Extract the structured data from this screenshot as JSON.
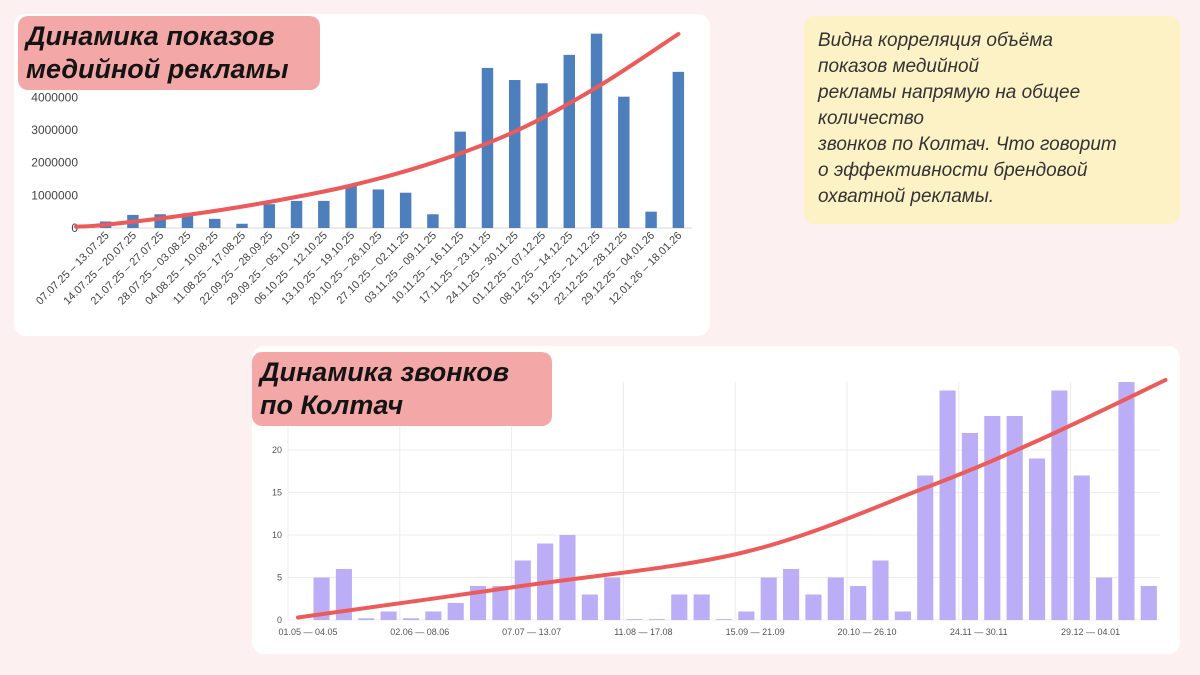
{
  "top_chart": {
    "title_lines": [
      "Динамика показов",
      "медийной рекламы"
    ]
  },
  "bottom_chart": {
    "title_lines": [
      "Динамика звонков",
      "по Колтач"
    ]
  },
  "note": {
    "lines": [
      "Видна корреляция объёма",
      "показов медийной",
      "рекламы напрямую на общее",
      "количество",
      "звонков по Колтач. Что говорит",
      "о эффективности брендовой",
      "охватной рекламы."
    ]
  },
  "colors": {
    "top_bar": "#4e7fbd",
    "bottom_bar": "#bbaef6",
    "trend_line": "#ec5a5a",
    "title_bg": "#f4a7a7",
    "note_bg": "#fdf1c6"
  },
  "chart_data": [
    {
      "type": "bar",
      "title": "Динамика показов медийной рекламы",
      "categories": [
        "07.07.25 – 13.07.25",
        "14.07.25 – 20.07.25",
        "21.07.25 – 27.07.25",
        "28.07.25 – 03.08.25",
        "04.08.25 – 10.08.25",
        "11.08.25 – 17.08.25",
        "22.09.25 – 28.09.25",
        "29.09.25 – 05.10.25",
        "06.10.25 – 12.10.25",
        "13.10.25 – 19.10.25",
        "20.10.25 – 26.10.25",
        "27.10.25 – 02.11.25",
        "03.11.25 – 09.11.25",
        "10.11.25 – 16.11.25",
        "17.11.25 – 23.11.25",
        "24.11.25 – 30.11.25",
        "01.12.25 – 07.12.25",
        "08.12.25 – 14.12.25",
        "15.12.25 – 21.12.25",
        "22.12.25 – 28.12.25",
        "29.12.25 – 04.01.26",
        "12.01.26 – 18.01.26"
      ],
      "values": [
        200000,
        400000,
        420000,
        450000,
        280000,
        130000,
        730000,
        830000,
        830000,
        1330000,
        1180000,
        1080000,
        420000,
        2950000,
        4900000,
        4530000,
        4430000,
        5300000,
        5950000,
        4020000,
        500000,
        4780000
      ],
      "yticks": [
        0,
        1000000,
        2000000,
        3000000,
        4000000
      ],
      "ylim": [
        0,
        6000000
      ],
      "trend": "exponential",
      "trend_points": [
        [
          0,
          100000
        ],
        [
          3,
          400000
        ],
        [
          6,
          800000
        ],
        [
          9,
          1300000
        ],
        [
          12,
          2000000
        ],
        [
          15,
          2950000
        ],
        [
          18,
          4300000
        ],
        [
          21,
          6000000
        ]
      ],
      "grid": false
    },
    {
      "type": "bar",
      "title": "Динамика звонков по Колтач",
      "values": [
        0,
        5,
        6,
        0.2,
        1,
        0.2,
        1,
        2,
        4,
        4,
        7,
        9,
        10,
        3,
        5,
        0.1,
        0.1,
        3,
        3,
        0.1,
        1,
        5,
        6,
        3,
        5,
        4,
        7,
        1,
        17,
        27,
        22,
        24,
        24,
        19,
        27,
        17,
        5,
        28,
        4
      ],
      "xtick_labels": [
        "01.05 — 04.05",
        "02.06 — 08.06",
        "07.07 — 13.07",
        "11.08 — 17.08",
        "15.09 — 21.09",
        "20.10 — 26.10",
        "24.11 — 30.11",
        "29.12 — 04.01"
      ],
      "xtick_positions": [
        0,
        5,
        10,
        15,
        20,
        25,
        30,
        35
      ],
      "yticks": [
        0,
        5,
        10,
        15,
        20
      ],
      "ylim": [
        0,
        28
      ],
      "trend": "exponential",
      "trend_points": [
        [
          0,
          0.3
        ],
        [
          10,
          4
        ],
        [
          20,
          8
        ],
        [
          28,
          15.5
        ],
        [
          33,
          21
        ],
        [
          38.8,
          29
        ]
      ],
      "grid": true
    }
  ]
}
